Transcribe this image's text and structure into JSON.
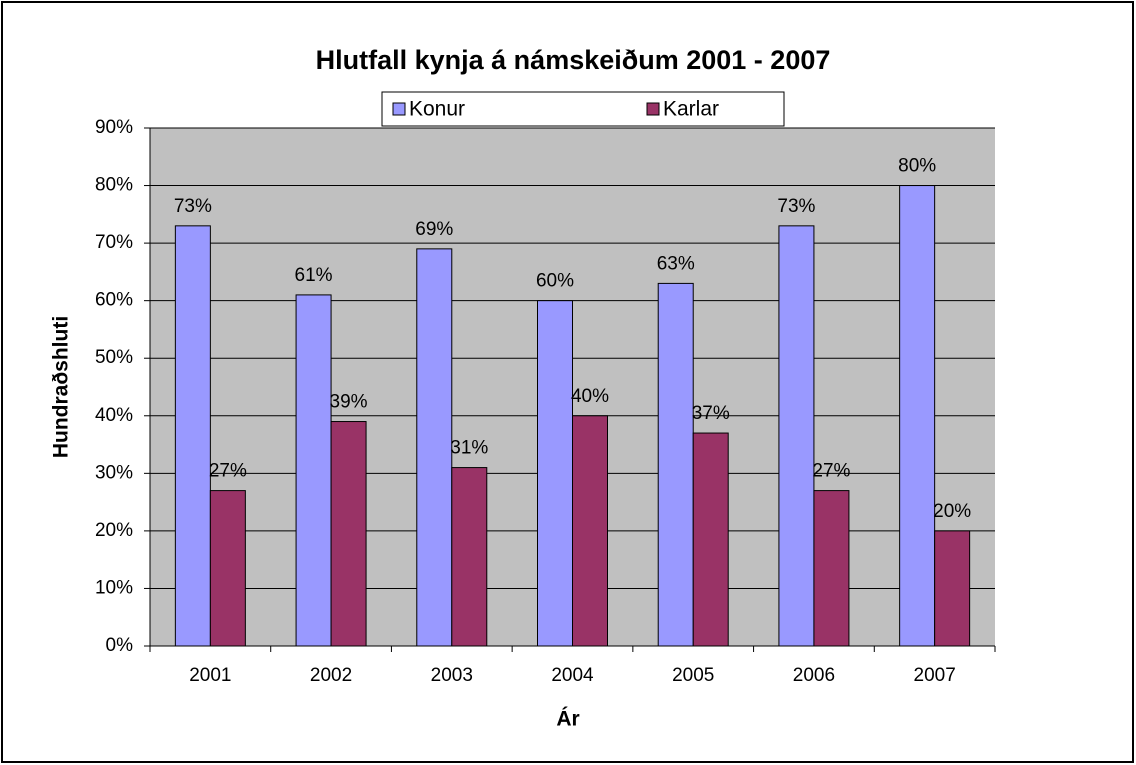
{
  "chart_data": {
    "type": "bar",
    "title": "Hlutfall kynja á námskeiðum 2001 - 2007",
    "x_label": "Ár",
    "y_label": "Hundraðshluti",
    "categories": [
      "2001",
      "2002",
      "2003",
      "2004",
      "2005",
      "2006",
      "2007"
    ],
    "series": [
      {
        "name": "Konur",
        "color": "#9999ff",
        "values": [
          73,
          61,
          69,
          60,
          63,
          73,
          80
        ],
        "value_labels": [
          "73%",
          "61%",
          "69%",
          "60%",
          "63%",
          "73%",
          "80%"
        ]
      },
      {
        "name": "Karlar",
        "color": "#993366",
        "values": [
          27,
          39,
          31,
          40,
          37,
          27,
          20
        ],
        "value_labels": [
          "27%",
          "39%",
          "31%",
          "40%",
          "37%",
          "27%",
          "20%"
        ]
      }
    ],
    "ylim": [
      0,
      90
    ],
    "yticks": [
      {
        "value": 0,
        "label": "0%"
      },
      {
        "value": 10,
        "label": "10%"
      },
      {
        "value": 20,
        "label": "20%"
      },
      {
        "value": 30,
        "label": "30%"
      },
      {
        "value": 40,
        "label": "40%"
      },
      {
        "value": 50,
        "label": "50%"
      },
      {
        "value": 60,
        "label": "60%"
      },
      {
        "value": 70,
        "label": "70%"
      },
      {
        "value": 80,
        "label": "80%"
      },
      {
        "value": 90,
        "label": "90%"
      }
    ],
    "grid": true,
    "legend": "top"
  }
}
